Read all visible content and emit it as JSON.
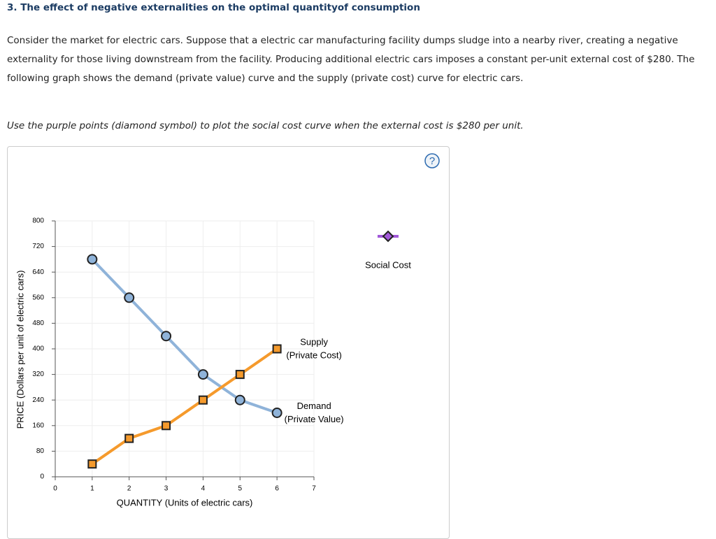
{
  "header": {
    "title": "3. The effect of negative externalities on the optimal quantityof consumption"
  },
  "body": {
    "paragraph": "Consider the market for electric cars. Suppose that a electric car manufacturing facility dumps sludge into a nearby river, creating a negative externality for those living downstream from the facility. Producing additional electric cars imposes a constant per-unit external cost of $280. The following graph shows the demand (private value) curve and the supply (private cost) curve for electric cars.",
    "instruction": "Use the purple points (diamond symbol) to plot the social cost curve when the external cost is $280 per unit."
  },
  "graph": {
    "type": "line",
    "help": "?",
    "xlabel": "QUANTITY (Units of electric cars)",
    "ylabel": "PRICE (Dollars per unit of electric cars)",
    "x": [
      1,
      2,
      3,
      4,
      5,
      6
    ],
    "series": [
      {
        "name": "Demand",
        "sublabel": "(Private Value)",
        "color": "#8fb3d9",
        "marker": "circle",
        "values": [
          680,
          560,
          440,
          320,
          240,
          200
        ]
      },
      {
        "name": "Supply",
        "sublabel": "(Private Cost)",
        "color": "#f59a2c",
        "marker": "square",
        "values": [
          40,
          120,
          160,
          240,
          320,
          400
        ]
      }
    ],
    "legend": {
      "label": "Social Cost",
      "color": "#a259d9"
    },
    "xlim": [
      0,
      7
    ],
    "xticks": [
      0,
      1,
      2,
      3,
      4,
      5,
      6,
      7
    ],
    "ylim": [
      0,
      800
    ],
    "yticks": [
      0,
      80,
      160,
      240,
      320,
      400,
      480,
      560,
      640,
      720,
      800
    ],
    "grid": true
  }
}
